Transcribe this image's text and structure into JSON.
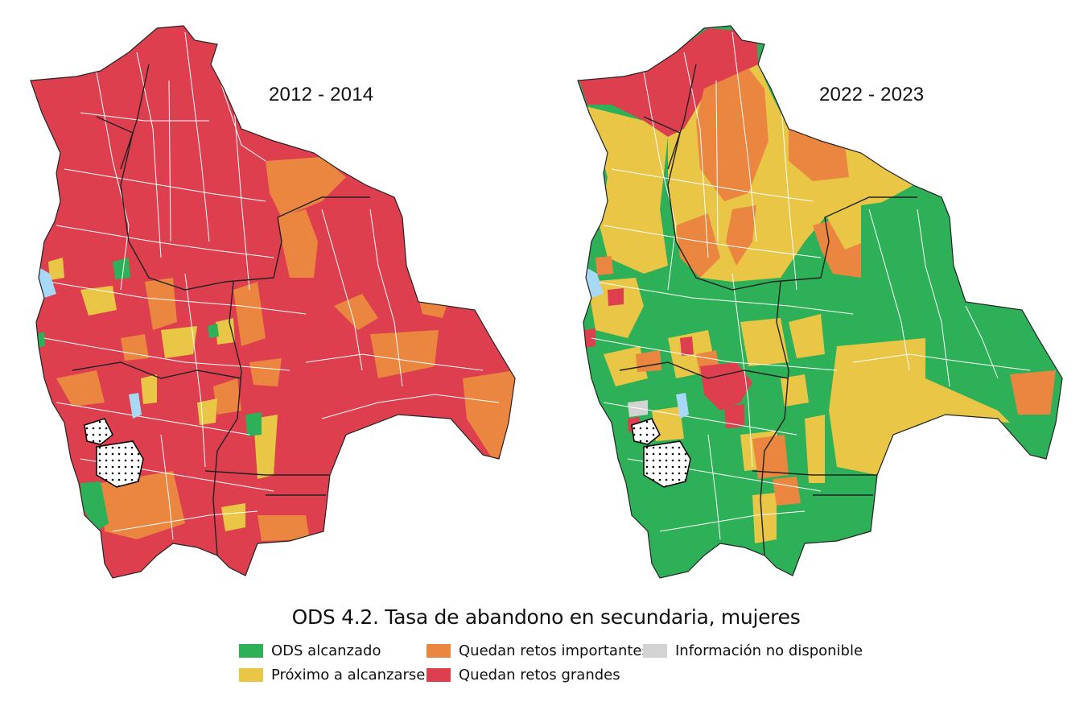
{
  "title": "ODS 4.2. Tasa de abandono en secundaria, mujeres",
  "panels": [
    {
      "period": "2012 - 2014"
    },
    {
      "period": "2022 - 2023"
    }
  ],
  "legend": [
    {
      "label": "ODS alcanzado",
      "color": "#2db057"
    },
    {
      "label": "Próximo a alcanzarse",
      "color": "#e9c646"
    },
    {
      "label": "Quedan retos importantes",
      "color": "#ea8640"
    },
    {
      "label": "Quedan retos grandes",
      "color": "#dd3f4f"
    },
    {
      "label": "Información no disponible",
      "color": "#d3d3d3"
    }
  ],
  "map_colors": {
    "water": "#a7d8f5",
    "boundary": "#ffffff",
    "department_border": "#222222"
  }
}
